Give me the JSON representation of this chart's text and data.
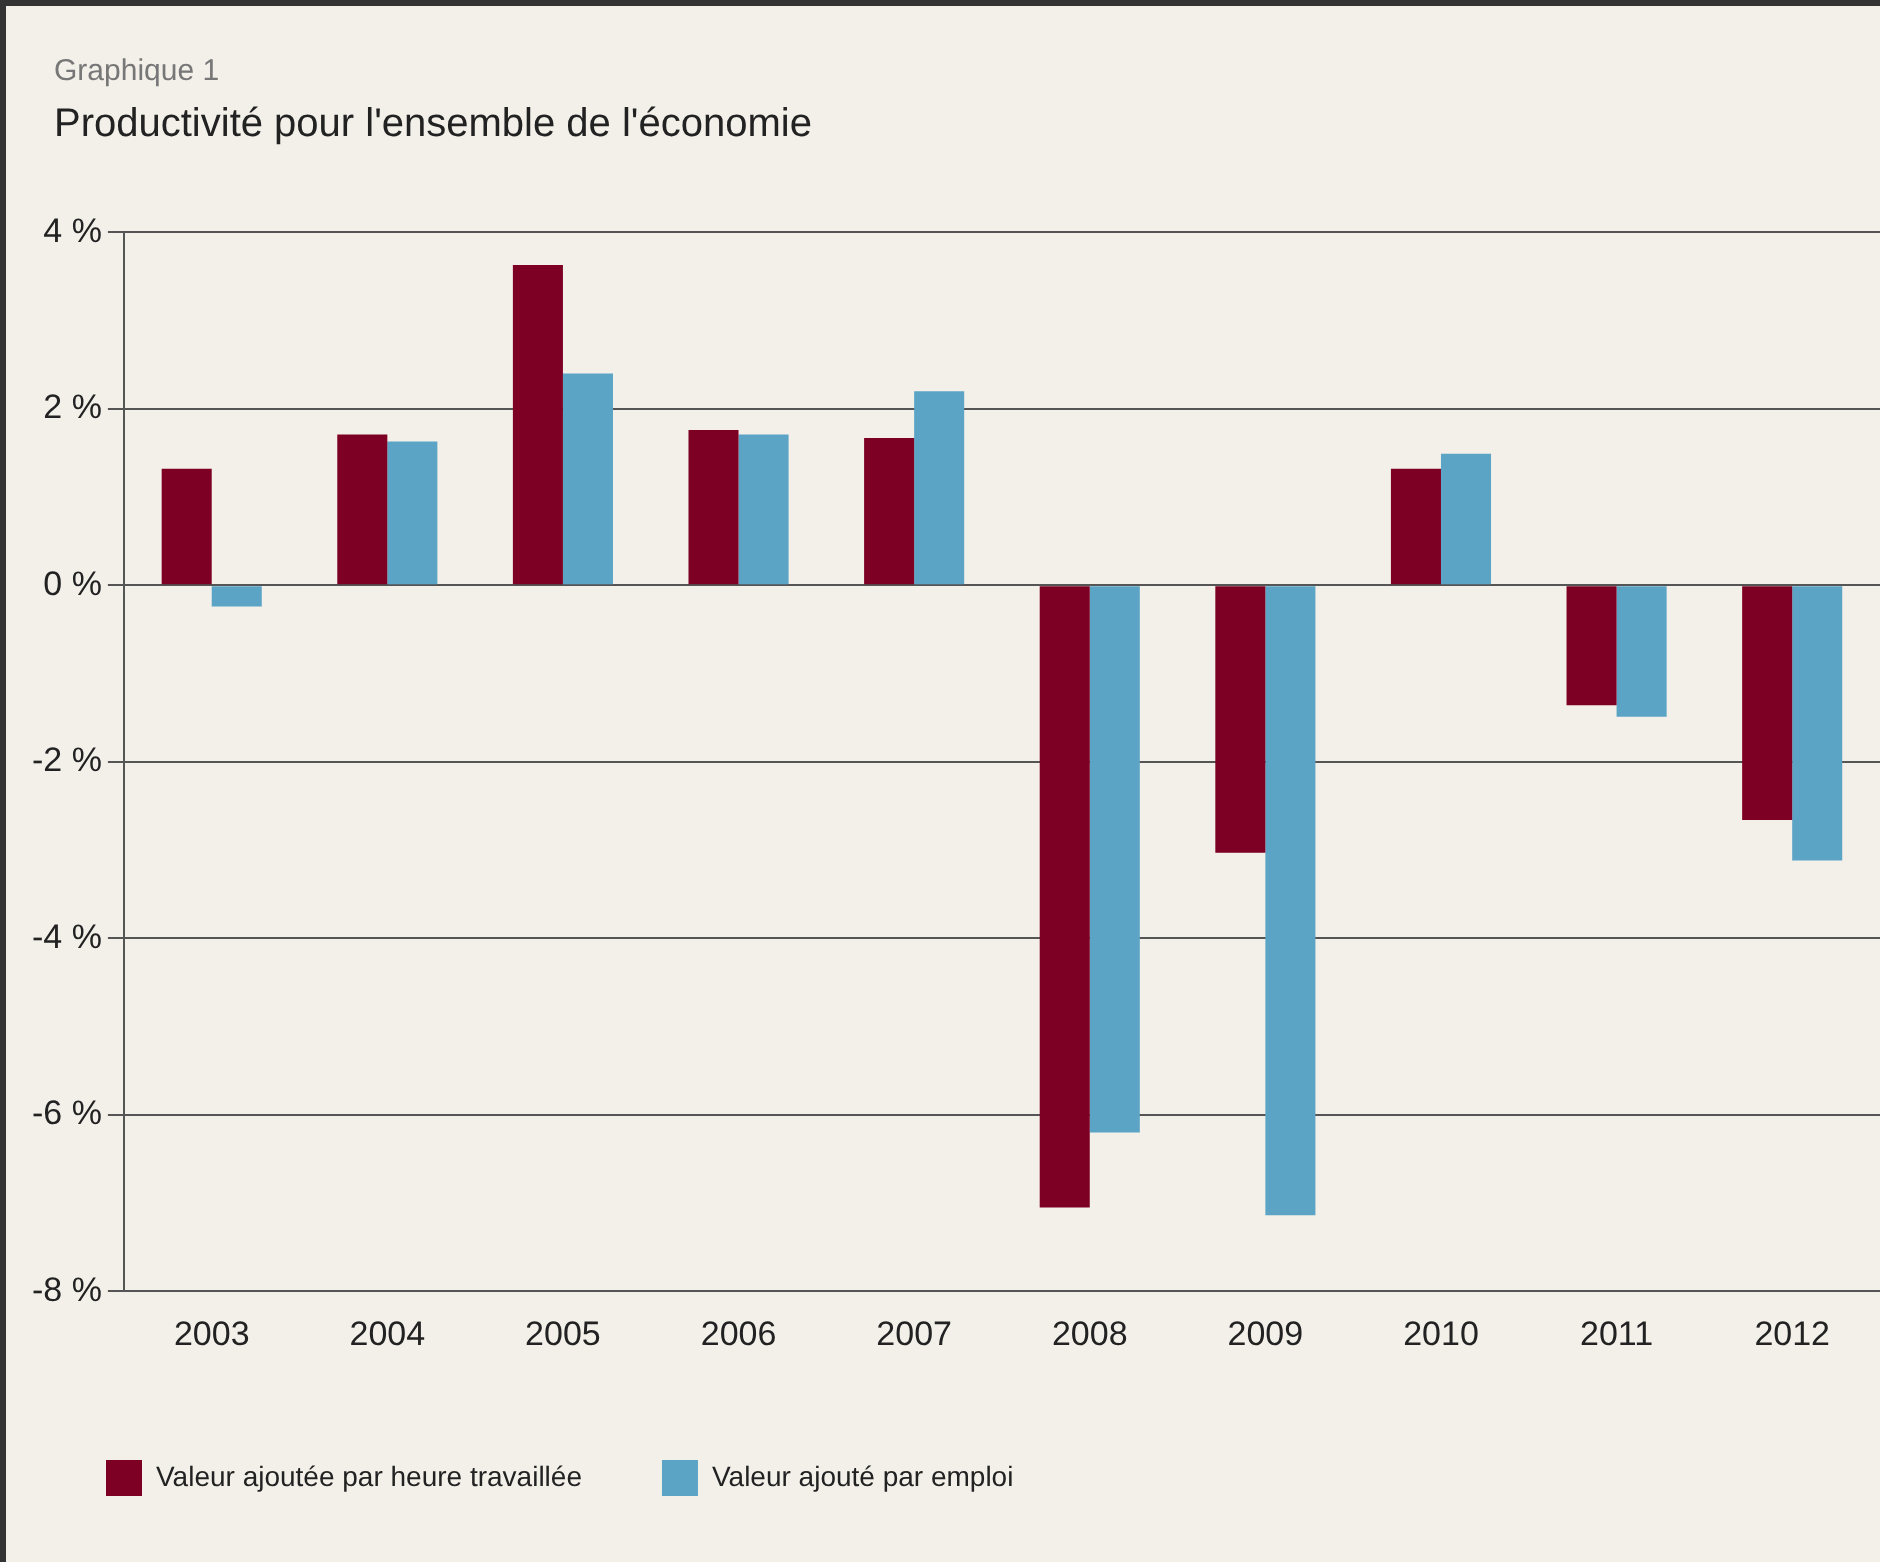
{
  "chart_data": {
    "type": "bar",
    "subtitle": "Graphique 1",
    "title": "Productivité pour l'ensemble de l'économie",
    "categories": [
      "2003",
      "2004",
      "2005",
      "2006",
      "2007",
      "2008",
      "2009",
      "2010",
      "2011",
      "2012"
    ],
    "series": [
      {
        "name": "Valeur ajoutée par heure travaillée",
        "color": "#7d0024",
        "values": [
          1.32,
          1.71,
          3.63,
          1.76,
          1.67,
          -7.05,
          -3.03,
          1.32,
          -1.36,
          -2.66
        ]
      },
      {
        "name": "Valeur ajouté par emploi",
        "color": "#5ba4c6",
        "values": [
          -0.24,
          1.63,
          2.4,
          1.71,
          2.2,
          -6.2,
          -7.14,
          1.49,
          -1.49,
          -3.12
        ]
      }
    ],
    "ylim": [
      -8,
      4
    ],
    "yticks": [
      {
        "value": -8,
        "label": "-8 %"
      },
      {
        "value": -6,
        "label": "-6 %"
      },
      {
        "value": -4,
        "label": "-4 %"
      },
      {
        "value": -2,
        "label": "-2 %"
      },
      {
        "value": 0,
        "label": "0 %"
      },
      {
        "value": 2,
        "label": "2 %"
      },
      {
        "value": 4,
        "label": "4 %"
      }
    ],
    "grid": "y",
    "legend": "bottom"
  }
}
